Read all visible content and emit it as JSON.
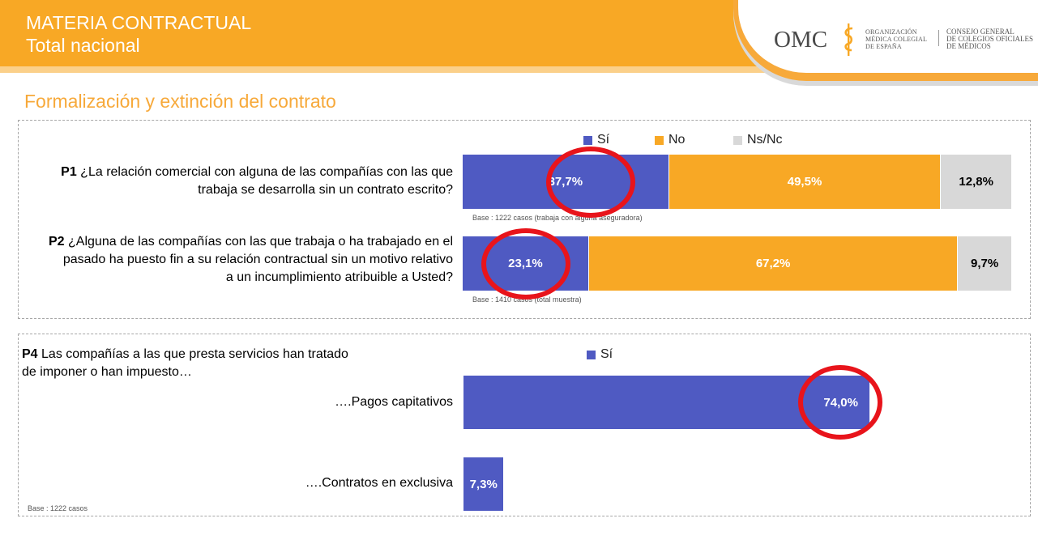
{
  "header": {
    "title_line1": "MATERIA CONTRACTUAL",
    "title_line2": "Total nacional"
  },
  "logo": {
    "omc": "OMC",
    "org_line1": "ORGANIZACIÓN",
    "org_line2": "MÉDICA COLEGIAL",
    "org_line3": "DE ESPAÑA",
    "council_line1": "CONSEJO GENERAL",
    "council_line2": "DE COLEGIOS OFICIALES",
    "council_line3": "DE MÉDICOS"
  },
  "section_title": "Formalización y extinción del contrato",
  "colors": {
    "si": "#4f5ac2",
    "no": "#f8a825",
    "nsnc": "#d8d8d8",
    "highlight": "#e8141b",
    "brand": "#f8a825"
  },
  "chart_data": [
    {
      "type": "bar",
      "orientation": "horizontal",
      "stacked": true,
      "legend": [
        "Sí",
        "No",
        "Ns/Nc"
      ],
      "series": [
        {
          "name": "Sí",
          "values": [
            37.7,
            23.1
          ]
        },
        {
          "name": "No",
          "values": [
            49.5,
            67.2
          ]
        },
        {
          "name": "Ns/Nc",
          "values": [
            12.8,
            9.7
          ]
        }
      ],
      "categories": [
        "P1",
        "P2"
      ],
      "questions": [
        {
          "code": "P1",
          "text_line1": "¿La relación comercial con alguna de las compañías con las que",
          "text_line2": "trabaja se desarrolla sin un contrato escrito?",
          "labels": [
            "37,7%",
            "49,5%",
            "12,8%"
          ],
          "base": "Base : 1222 casos (trabaja con alguna aseguradora)"
        },
        {
          "code": "P2",
          "text_line1": "¿Alguna de las compañías con las que trabaja o ha trabajado en el",
          "text_line2": "pasado ha puesto fin a su relación contractual sin un motivo relativo",
          "text_line3": "a un incumplimiento atribuible a Usted?",
          "labels": [
            "23,1%",
            "67,2%",
            "9,7%"
          ],
          "base": "Base : 1410 casos (total muestra)"
        }
      ],
      "highlighted_series": "Sí"
    },
    {
      "type": "bar",
      "orientation": "horizontal",
      "legend": [
        "Sí"
      ],
      "question": {
        "code": "P4",
        "text_line1": "Las compañías a las que presta servicios han tratado",
        "text_line2": "de imponer o han impuesto…"
      },
      "categories": [
        "….Pagos capitativos",
        "….Contratos en exclusiva"
      ],
      "series": [
        {
          "name": "Sí",
          "values": [
            74.0,
            7.3
          ]
        }
      ],
      "labels": [
        "74,0%",
        "7,3%"
      ],
      "xlim": [
        0,
        100
      ],
      "base": "Base : 1222 casos",
      "highlighted": "….Pagos capitativos"
    }
  ]
}
